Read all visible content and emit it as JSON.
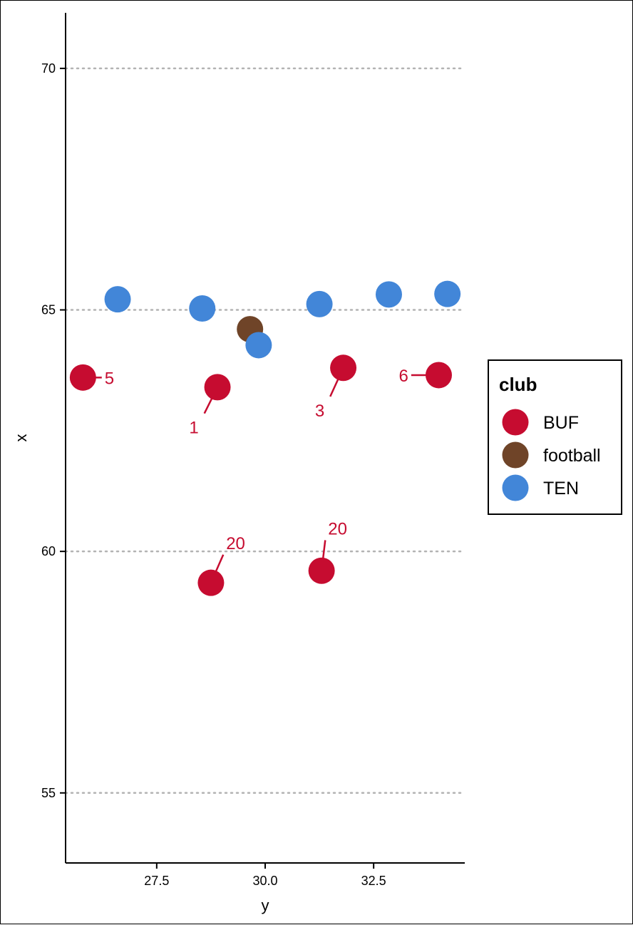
{
  "chart_data": {
    "type": "scatter",
    "title": "",
    "xlabel": "y",
    "ylabel": "x",
    "xlim": [
      25.4,
      34.6
    ],
    "ylim": [
      53.55,
      71.15
    ],
    "x_ticks": [
      27.5,
      30.0,
      32.5
    ],
    "x_tick_labels": [
      "27.5",
      "30.0",
      "32.5"
    ],
    "y_ticks": [
      55,
      60,
      65,
      70
    ],
    "y_tick_labels": [
      "55",
      "60",
      "65",
      "70"
    ],
    "grid": "horizontal dotted",
    "legend": {
      "title": "club",
      "placement": "right",
      "entries": [
        {
          "name": "BUF",
          "color": "#C60C30"
        },
        {
          "name": "football",
          "color": "#6F4428"
        },
        {
          "name": "TEN",
          "color": "#4286D8"
        }
      ]
    },
    "series": [
      {
        "name": "BUF",
        "color": "#C60C30",
        "points": [
          {
            "x": 25.8,
            "y": 63.6,
            "label": "5",
            "label_at": [
              26.3,
              63.6
            ]
          },
          {
            "x": 28.9,
            "y": 63.4,
            "label": "1",
            "label_at": [
              28.5,
              62.65
            ]
          },
          {
            "x": 31.8,
            "y": 63.8,
            "label": "3",
            "label_at": [
              31.4,
              63.0
            ]
          },
          {
            "x": 34.0,
            "y": 63.65,
            "label": "6",
            "label_at": [
              33.3,
              63.65
            ]
          },
          {
            "x": 28.75,
            "y": 59.35,
            "label": "20",
            "label_at": [
              29.1,
              60.05
            ]
          },
          {
            "x": 31.3,
            "y": 59.6,
            "label": "20",
            "label_at": [
              31.45,
              60.35
            ]
          }
        ]
      },
      {
        "name": "football",
        "color": "#6F4428",
        "points": [
          {
            "x": 29.65,
            "y": 64.6
          }
        ]
      },
      {
        "name": "TEN",
        "color": "#4286D8",
        "points": [
          {
            "x": 26.6,
            "y": 65.22
          },
          {
            "x": 28.55,
            "y": 65.03
          },
          {
            "x": 29.85,
            "y": 64.27
          },
          {
            "x": 31.25,
            "y": 65.12
          },
          {
            "x": 32.85,
            "y": 65.32
          },
          {
            "x": 34.2,
            "y": 65.33
          }
        ]
      }
    ]
  }
}
